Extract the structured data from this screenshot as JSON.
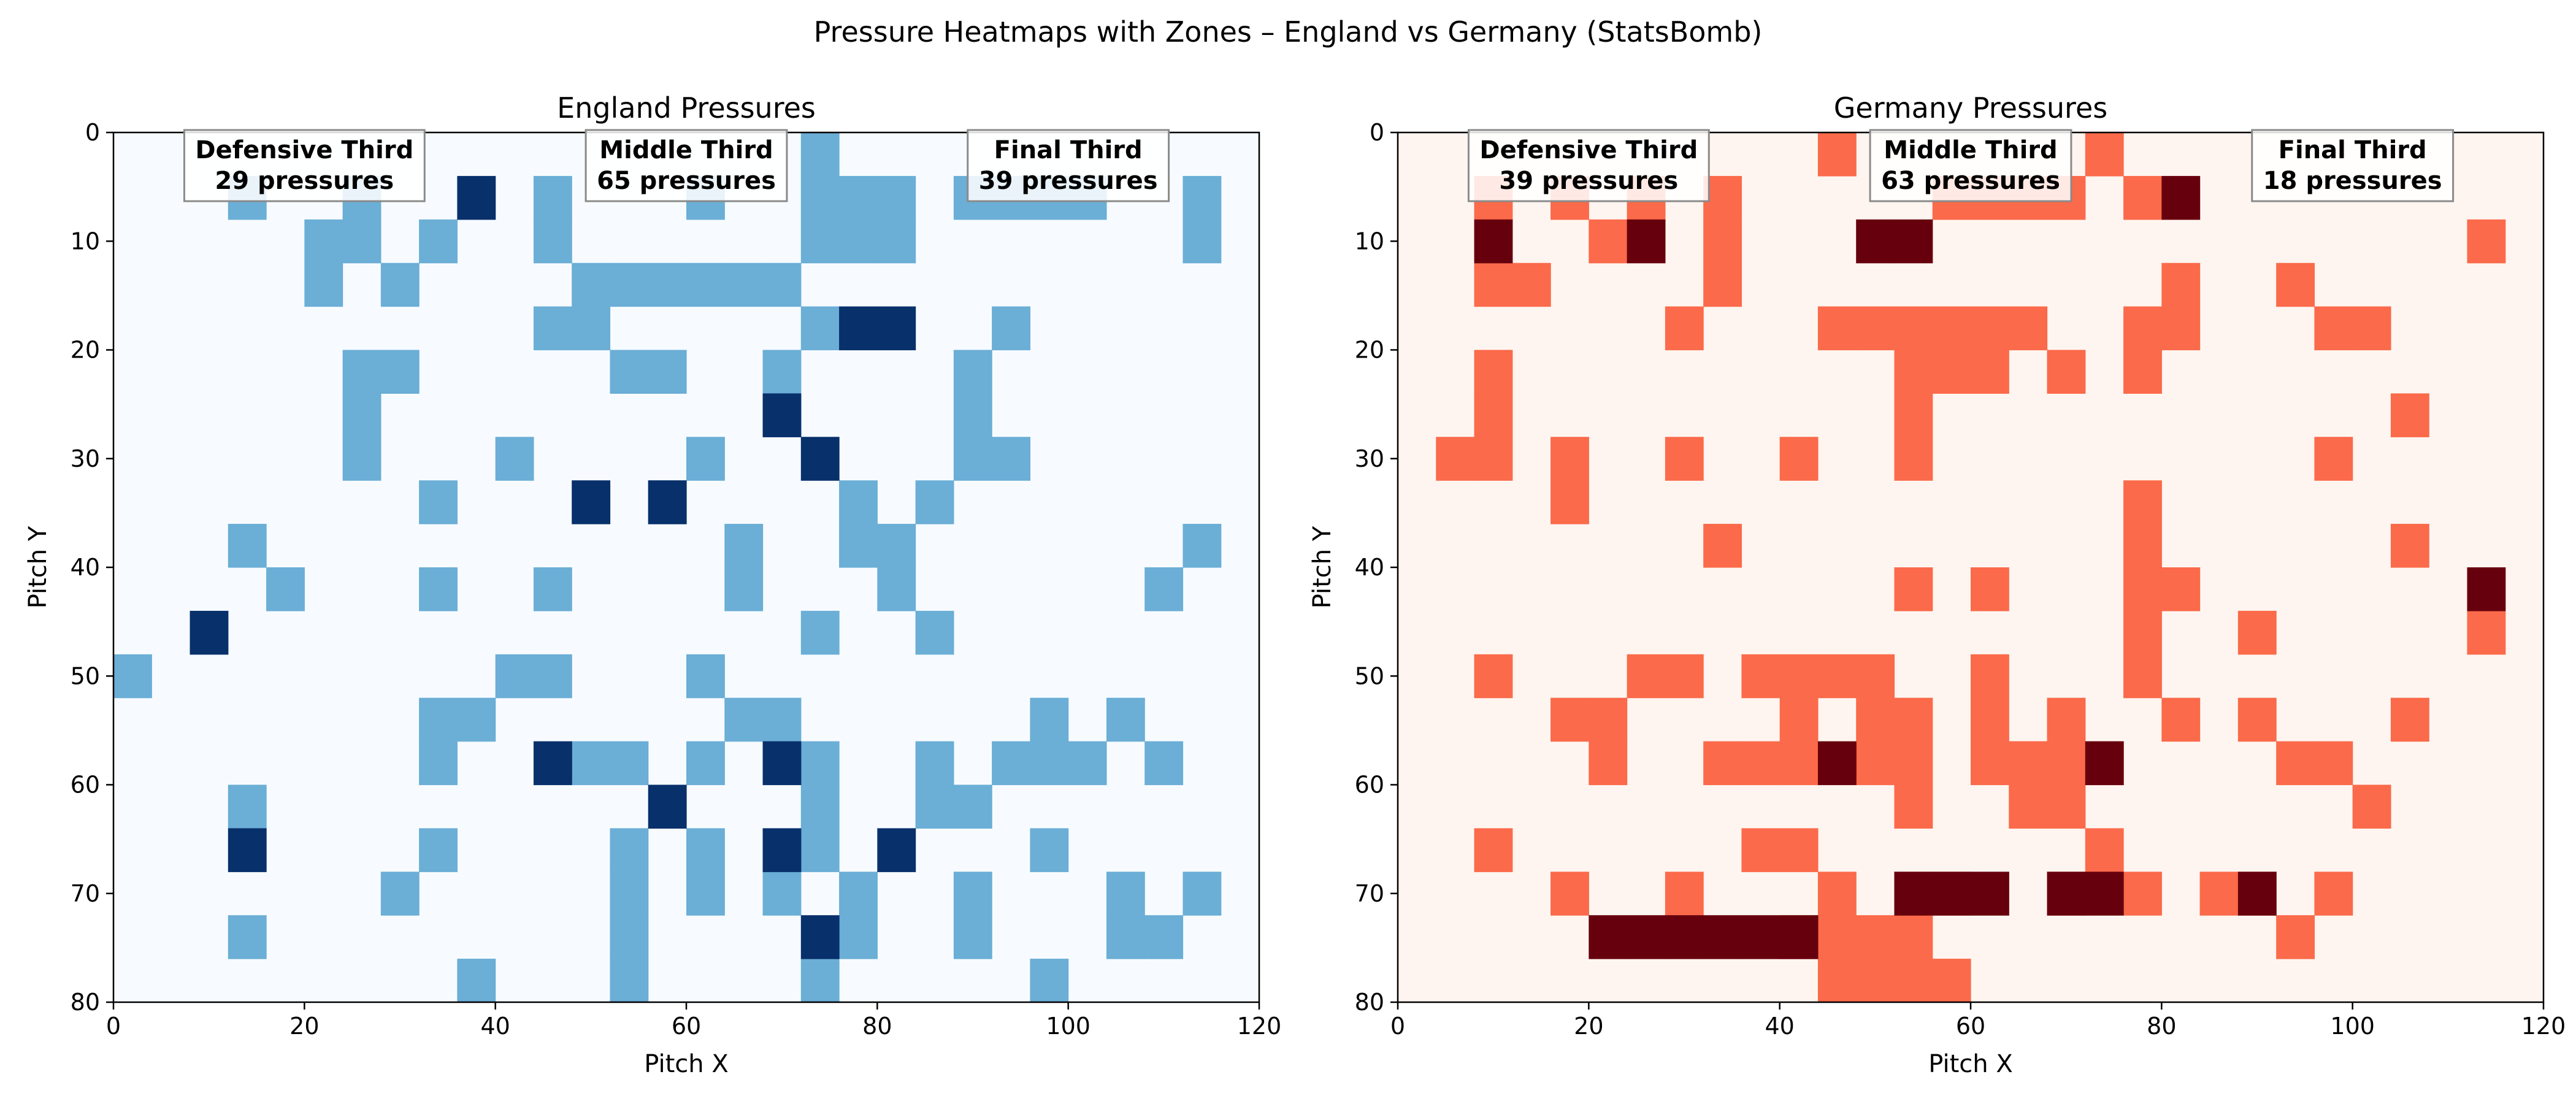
{
  "figure": {
    "title": "Pressure Heatmaps with Zones – England vs Germany (StatsBomb)"
  },
  "chart_data": [
    {
      "type": "heatmap",
      "title": "England Pressures",
      "xlabel": "Pitch X",
      "ylabel": "Pitch Y",
      "xlim": [
        0,
        120
      ],
      "ylim": [
        0,
        80
      ],
      "y_inverted": true,
      "grid": false,
      "xticks": [
        "0",
        "20",
        "40",
        "60",
        "80",
        "100",
        "120"
      ],
      "yticks": [
        "0",
        "10",
        "20",
        "30",
        "40",
        "50",
        "60",
        "70",
        "80"
      ],
      "bin_size": [
        4,
        4
      ],
      "colormap": "Blues",
      "colors": {
        "background": "#f7fbff",
        "level1": "#6baed6",
        "level2": "#08306b"
      },
      "cells": {
        "level1": [
          [
            18,
            0
          ],
          [
            3,
            1
          ],
          [
            6,
            1
          ],
          [
            11,
            1
          ],
          [
            15,
            1
          ],
          [
            18,
            1
          ],
          [
            19,
            1
          ],
          [
            20,
            1
          ],
          [
            22,
            1
          ],
          [
            23,
            1
          ],
          [
            24,
            1
          ],
          [
            25,
            1
          ],
          [
            28,
            1
          ],
          [
            5,
            2
          ],
          [
            6,
            2
          ],
          [
            8,
            2
          ],
          [
            11,
            2
          ],
          [
            18,
            2
          ],
          [
            19,
            2
          ],
          [
            20,
            2
          ],
          [
            28,
            2
          ],
          [
            5,
            3
          ],
          [
            7,
            3
          ],
          [
            12,
            3
          ],
          [
            13,
            3
          ],
          [
            14,
            3
          ],
          [
            15,
            3
          ],
          [
            16,
            3
          ],
          [
            17,
            3
          ],
          [
            11,
            4
          ],
          [
            12,
            4
          ],
          [
            18,
            4
          ],
          [
            23,
            4
          ],
          [
            6,
            5
          ],
          [
            7,
            5
          ],
          [
            13,
            5
          ],
          [
            14,
            5
          ],
          [
            17,
            5
          ],
          [
            22,
            5
          ],
          [
            6,
            6
          ],
          [
            17,
            6
          ],
          [
            22,
            6
          ],
          [
            6,
            7
          ],
          [
            22,
            7
          ],
          [
            23,
            7
          ],
          [
            10,
            7
          ],
          [
            15,
            7
          ],
          [
            8,
            8
          ],
          [
            14,
            8
          ],
          [
            19,
            8
          ],
          [
            21,
            8
          ],
          [
            3,
            9
          ],
          [
            16,
            9
          ],
          [
            19,
            9
          ],
          [
            20,
            9
          ],
          [
            28,
            9
          ],
          [
            4,
            10
          ],
          [
            8,
            10
          ],
          [
            11,
            10
          ],
          [
            16,
            10
          ],
          [
            20,
            10
          ],
          [
            27,
            10
          ],
          [
            18,
            11
          ],
          [
            21,
            11
          ],
          [
            0,
            12
          ],
          [
            10,
            12
          ],
          [
            11,
            12
          ],
          [
            15,
            12
          ],
          [
            8,
            13
          ],
          [
            9,
            13
          ],
          [
            16,
            13
          ],
          [
            17,
            13
          ],
          [
            24,
            13
          ],
          [
            26,
            13
          ],
          [
            8,
            14
          ],
          [
            13,
            14
          ],
          [
            15,
            14
          ],
          [
            18,
            14
          ],
          [
            21,
            14
          ],
          [
            23,
            14
          ],
          [
            24,
            14
          ],
          [
            25,
            14
          ],
          [
            27,
            14
          ],
          [
            12,
            14
          ],
          [
            3,
            15
          ],
          [
            18,
            15
          ],
          [
            21,
            15
          ],
          [
            22,
            15
          ],
          [
            8,
            16
          ],
          [
            15,
            16
          ],
          [
            18,
            16
          ],
          [
            24,
            16
          ],
          [
            13,
            16
          ],
          [
            13,
            17
          ],
          [
            15,
            17
          ],
          [
            17,
            17
          ],
          [
            19,
            17
          ],
          [
            22,
            17
          ],
          [
            26,
            17
          ],
          [
            28,
            17
          ],
          [
            7,
            17
          ],
          [
            3,
            18
          ],
          [
            13,
            18
          ],
          [
            19,
            18
          ],
          [
            22,
            18
          ],
          [
            26,
            18
          ],
          [
            27,
            18
          ],
          [
            9,
            19
          ],
          [
            13,
            19
          ],
          [
            18,
            19
          ],
          [
            24,
            19
          ]
        ],
        "level2": [
          [
            9,
            1
          ],
          [
            19,
            4
          ],
          [
            20,
            4
          ],
          [
            17,
            6
          ],
          [
            18,
            7
          ],
          [
            12,
            8
          ],
          [
            14,
            8
          ],
          [
            2,
            11
          ],
          [
            11,
            14
          ],
          [
            17,
            14
          ],
          [
            14,
            15
          ],
          [
            3,
            16
          ],
          [
            17,
            16
          ],
          [
            20,
            16
          ],
          [
            18,
            18
          ]
        ]
      },
      "zones": [
        {
          "name": "Defensive Third",
          "label": "29 pressures",
          "x_center": 20
        },
        {
          "name": "Middle Third",
          "label": "65 pressures",
          "x_center": 60
        },
        {
          "name": "Final Third",
          "label": "39 pressures",
          "x_center": 100
        }
      ]
    },
    {
      "type": "heatmap",
      "title": "Germany Pressures",
      "xlabel": "Pitch X",
      "ylabel": "Pitch Y",
      "xlim": [
        0,
        120
      ],
      "ylim": [
        0,
        80
      ],
      "y_inverted": true,
      "grid": false,
      "xticks": [
        "0",
        "20",
        "40",
        "60",
        "80",
        "100",
        "120"
      ],
      "yticks": [
        "0",
        "10",
        "20",
        "30",
        "40",
        "50",
        "60",
        "70",
        "80"
      ],
      "bin_size": [
        4,
        4
      ],
      "colormap": "Reds",
      "colors": {
        "background": "#fff5f0",
        "level1": "#fb6a4a",
        "level2": "#67000d"
      },
      "cells": {
        "level1": [
          [
            11,
            0
          ],
          [
            18,
            0
          ],
          [
            2,
            1
          ],
          [
            4,
            1
          ],
          [
            6,
            1
          ],
          [
            8,
            1
          ],
          [
            14,
            1
          ],
          [
            15,
            1
          ],
          [
            16,
            1
          ],
          [
            17,
            1
          ],
          [
            19,
            1
          ],
          [
            5,
            2
          ],
          [
            8,
            2
          ],
          [
            28,
            2
          ],
          [
            2,
            3
          ],
          [
            3,
            3
          ],
          [
            8,
            3
          ],
          [
            20,
            3
          ],
          [
            23,
            3
          ],
          [
            15,
            4
          ],
          [
            16,
            4
          ],
          [
            11,
            4
          ],
          [
            12,
            4
          ],
          [
            13,
            4
          ],
          [
            14,
            4
          ],
          [
            7,
            4
          ],
          [
            19,
            4
          ],
          [
            24,
            4
          ],
          [
            20,
            4
          ],
          [
            25,
            4
          ],
          [
            13,
            5
          ],
          [
            14,
            5
          ],
          [
            15,
            5
          ],
          [
            17,
            5
          ],
          [
            19,
            5
          ],
          [
            2,
            5
          ],
          [
            13,
            6
          ],
          [
            26,
            6
          ],
          [
            2,
            6
          ],
          [
            2,
            7
          ],
          [
            1,
            7
          ],
          [
            4,
            7
          ],
          [
            7,
            7
          ],
          [
            10,
            7
          ],
          [
            13,
            7
          ],
          [
            24,
            7
          ],
          [
            4,
            8
          ],
          [
            19,
            8
          ],
          [
            19,
            9
          ],
          [
            8,
            9
          ],
          [
            26,
            9
          ],
          [
            19,
            10
          ],
          [
            20,
            10
          ],
          [
            13,
            10
          ],
          [
            15,
            10
          ],
          [
            19,
            11
          ],
          [
            28,
            11
          ],
          [
            19,
            12
          ],
          [
            15,
            12
          ],
          [
            15,
            14
          ],
          [
            16,
            14
          ],
          [
            24,
            14
          ],
          [
            8,
            14
          ],
          [
            9,
            14
          ],
          [
            10,
            14
          ],
          [
            12,
            14
          ],
          [
            13,
            14
          ],
          [
            10,
            12
          ],
          [
            11,
            12
          ],
          [
            12,
            12
          ],
          [
            10,
            13
          ],
          [
            12,
            13
          ],
          [
            13,
            13
          ],
          [
            15,
            13
          ],
          [
            17,
            13
          ],
          [
            22,
            13
          ],
          [
            26,
            13
          ],
          [
            5,
            13
          ],
          [
            5,
            14
          ],
          [
            23,
            14
          ],
          [
            20,
            13
          ],
          [
            22,
            11
          ],
          [
            2,
            12
          ],
          [
            6,
            12
          ],
          [
            7,
            12
          ],
          [
            9,
            12
          ],
          [
            4,
            13
          ],
          [
            13,
            15
          ],
          [
            25,
            15
          ],
          [
            9,
            16
          ],
          [
            10,
            16
          ],
          [
            16,
            14
          ],
          [
            17,
            14
          ],
          [
            18,
            14
          ],
          [
            13,
            17
          ],
          [
            14,
            17
          ],
          [
            17,
            17
          ],
          [
            19,
            17
          ],
          [
            22,
            17
          ],
          [
            24,
            17
          ],
          [
            21,
            17
          ],
          [
            2,
            16
          ],
          [
            18,
            16
          ],
          [
            13,
            18
          ],
          [
            10,
            18
          ],
          [
            11,
            18
          ],
          [
            12,
            18
          ],
          [
            23,
            18
          ],
          [
            4,
            17
          ],
          [
            7,
            17
          ],
          [
            16,
            15
          ],
          [
            17,
            15
          ],
          [
            11,
            17
          ],
          [
            11,
            19
          ],
          [
            12,
            19
          ],
          [
            13,
            19
          ],
          [
            14,
            19
          ]
        ],
        "level2": [
          [
            2,
            2
          ],
          [
            6,
            2
          ],
          [
            12,
            2
          ],
          [
            13,
            2
          ],
          [
            20,
            1
          ],
          [
            28,
            10
          ],
          [
            11,
            14
          ],
          [
            18,
            14
          ],
          [
            13,
            17
          ],
          [
            14,
            17
          ],
          [
            15,
            17
          ],
          [
            17,
            17
          ],
          [
            18,
            17
          ],
          [
            22,
            17
          ],
          [
            5,
            18
          ],
          [
            6,
            18
          ],
          [
            7,
            18
          ],
          [
            8,
            18
          ],
          [
            9,
            18
          ],
          [
            10,
            18
          ]
        ]
      },
      "zones": [
        {
          "name": "Defensive Third",
          "label": "39 pressures",
          "x_center": 20
        },
        {
          "name": "Middle Third",
          "label": "63 pressures",
          "x_center": 60
        },
        {
          "name": "Final Third",
          "label": "18 pressures",
          "x_center": 100
        }
      ]
    }
  ]
}
